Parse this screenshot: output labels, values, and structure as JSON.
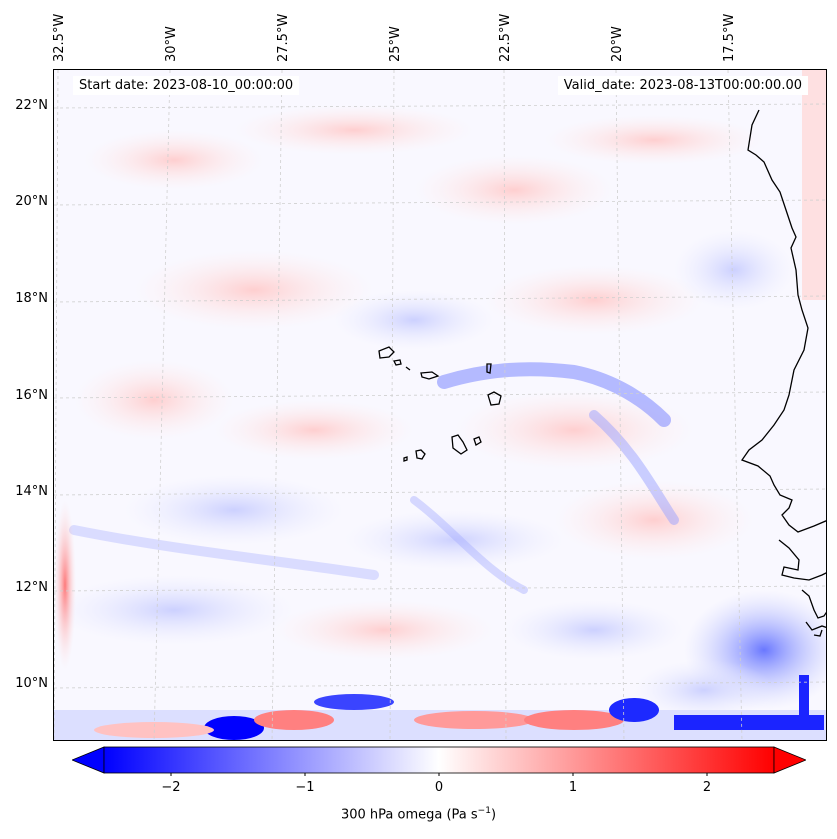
{
  "header": {
    "start_date": "Start date: 2023-08-10_00:00:00",
    "valid_date": "Valid_date: 2023-08-13T00:00:00.00"
  },
  "lon_labels": [
    "32.5°W",
    "30°W",
    "27.5°W",
    "25°W",
    "22.5°W",
    "20°W",
    "17.5°W"
  ],
  "lat_labels": [
    "22°N",
    "20°N",
    "18°N",
    "16°N",
    "14°N",
    "12°N",
    "10°N"
  ],
  "colorbar": {
    "label_main": "300 hPa omega (Pa s",
    "label_exp": "−1",
    "label_close": ")",
    "tick_labels": [
      "−2",
      "−1",
      "0",
      "1",
      "2"
    ],
    "range": [
      -2.6,
      2.6
    ],
    "cmap": "bwr",
    "extend": "both",
    "colors": {
      "negative": "#0000ff",
      "zero": "#ffffff",
      "positive": "#ff0000"
    }
  },
  "map": {
    "variable": "300 hPa omega",
    "coastline_color": "#000000",
    "gridline_color": "#cccccc"
  }
}
